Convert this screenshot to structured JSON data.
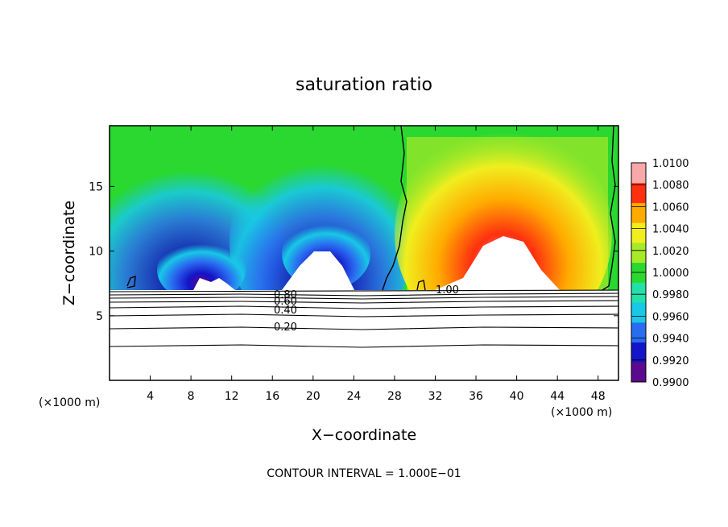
{
  "chart_data": {
    "type": "heatmap",
    "title": "saturation ratio",
    "xlabel": "X−coordinate",
    "ylabel": "Z−coordinate",
    "x_unit": "(×1000 m)",
    "xlim": [
      0,
      50
    ],
    "ylim": [
      0,
      19.7
    ],
    "x_ticks": [
      "4",
      "8",
      "12",
      "16",
      "20",
      "24",
      "28",
      "32",
      "36",
      "40",
      "44",
      "48"
    ],
    "y_ticks": [
      "5",
      "10",
      "15"
    ],
    "colorbar": {
      "levels": [
        "1.0100",
        "1.0080",
        "1.0060",
        "1.0040",
        "1.0020",
        "1.0000",
        "0.9980",
        "0.9960",
        "0.9940",
        "0.9920",
        "0.9900"
      ],
      "min": 0.99,
      "max": 1.01
    },
    "contour_labels": [
      "1.00",
      "0.80",
      "0.60",
      "0.40",
      "0.20"
    ],
    "contour_values": [
      1.0,
      0.8,
      0.6,
      0.4,
      0.2
    ],
    "footer": "CONTOUR INTERVAL = 1.000E−01",
    "grid": false,
    "colormap": [
      "#5a0a8c",
      "#1414c8",
      "#2a6cf0",
      "#18c8e6",
      "#22e0a8",
      "#2ad830",
      "#a8ea28",
      "#f0ee1e",
      "#ffaa00",
      "#ff3010",
      "#f8a8a8"
    ]
  }
}
